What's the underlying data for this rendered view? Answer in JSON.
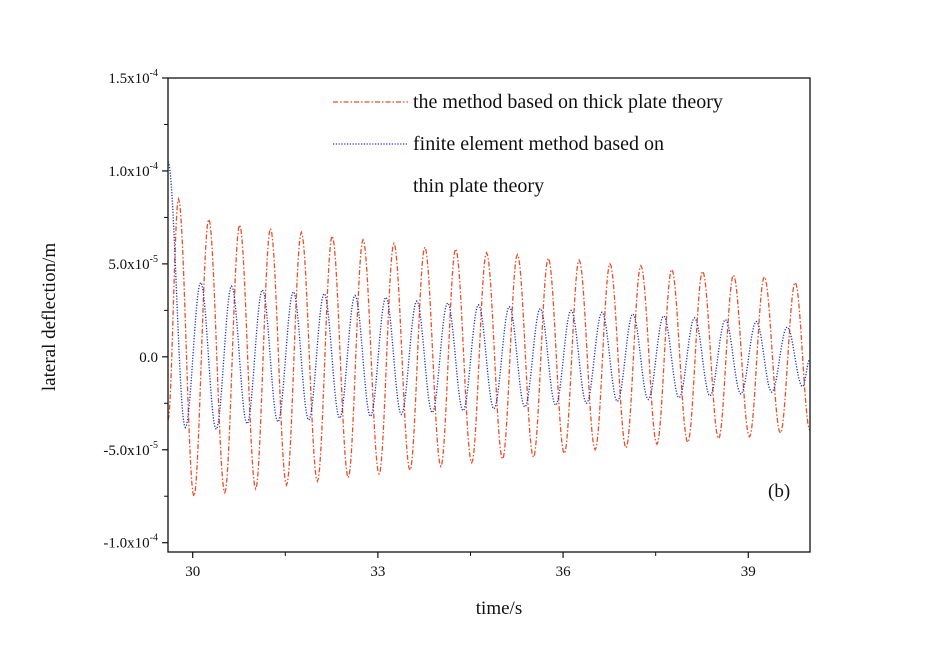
{
  "chart_data": {
    "type": "line",
    "title": "",
    "xlabel": "time/s",
    "ylabel": "lateral deflection/m",
    "xlim": [
      29.6,
      40.0
    ],
    "ylim": [
      -0.000105,
      0.00015
    ],
    "x_ticks": [
      30,
      33,
      36,
      39
    ],
    "x_tick_labels": [
      "30",
      "33",
      "36",
      "39"
    ],
    "y_ticks": [
      -0.0001,
      -5e-05,
      0.0,
      5e-05,
      0.0001,
      0.00015
    ],
    "y_tick_labels": [
      {
        "mantissa": "-1.0x10",
        "exp": "-4"
      },
      {
        "mantissa": "-5.0x10",
        "exp": "-5"
      },
      {
        "mantissa": "0.0",
        "exp": ""
      },
      {
        "mantissa": "5.0x10",
        "exp": "-5"
      },
      {
        "mantissa": "1.0x10",
        "exp": "-4"
      },
      {
        "mantissa": "1.5x10",
        "exp": "-4"
      }
    ],
    "panel_label": "(b)",
    "legend_position": "top-right",
    "grid": false,
    "series": [
      {
        "name": "the method based on thick plate theory",
        "color": "#e8502a",
        "line_style": "dash-dot",
        "start_x": 29.6,
        "end_x": 40.0,
        "period": 0.498,
        "peaks": [
          [
            29.77,
            8.5e-05
          ],
          [
            30.26,
            7.4e-05
          ],
          [
            30.76,
            7.1e-05
          ],
          [
            31.26,
            6.9e-05
          ],
          [
            31.76,
            6.7e-05
          ],
          [
            32.26,
            6.5e-05
          ],
          [
            32.76,
            6.3e-05
          ],
          [
            33.26,
            6.1e-05
          ],
          [
            33.76,
            5.9e-05
          ],
          [
            34.26,
            5.8e-05
          ],
          [
            34.76,
            5.6e-05
          ],
          [
            35.26,
            5.5e-05
          ],
          [
            35.76,
            5.3e-05
          ],
          [
            36.26,
            5.2e-05
          ],
          [
            36.76,
            5e-05
          ],
          [
            37.26,
            4.9e-05
          ],
          [
            37.76,
            4.7e-05
          ],
          [
            38.26,
            4.6e-05
          ],
          [
            38.76,
            4.4e-05
          ],
          [
            39.26,
            4.3e-05
          ],
          [
            39.76,
            4e-05
          ]
        ],
        "troughs": [
          [
            30.02,
            -7.5e-05
          ],
          [
            30.52,
            -7.3e-05
          ],
          [
            31.02,
            -7.1e-05
          ],
          [
            31.52,
            -6.9e-05
          ],
          [
            32.02,
            -6.7e-05
          ],
          [
            32.52,
            -6.5e-05
          ],
          [
            33.02,
            -6.3e-05
          ],
          [
            33.52,
            -6.1e-05
          ],
          [
            34.02,
            -5.9e-05
          ],
          [
            34.52,
            -5.7e-05
          ],
          [
            35.02,
            -5.5e-05
          ],
          [
            35.52,
            -5.4e-05
          ],
          [
            36.02,
            -5.2e-05
          ],
          [
            36.52,
            -5e-05
          ],
          [
            37.02,
            -4.9e-05
          ],
          [
            37.52,
            -4.7e-05
          ],
          [
            38.02,
            -4.6e-05
          ],
          [
            38.52,
            -4.4e-05
          ],
          [
            39.02,
            -4.3e-05
          ],
          [
            39.52,
            -4.1e-05
          ]
        ]
      },
      {
        "name": "finite element method based on thin plate theory",
        "color": "#1a2fc4",
        "line_style": "dotted",
        "start_x": 29.6,
        "end_x": 40.0,
        "start_value": 0.000105,
        "period": 0.5,
        "peaks": [
          [
            30.13,
            4e-05
          ],
          [
            30.63,
            3.8e-05
          ],
          [
            31.13,
            3.6e-05
          ],
          [
            31.63,
            3.5e-05
          ],
          [
            32.13,
            3.4e-05
          ],
          [
            32.63,
            3.3e-05
          ],
          [
            33.13,
            3.2e-05
          ],
          [
            33.63,
            3e-05
          ],
          [
            34.13,
            2.9e-05
          ],
          [
            34.63,
            2.8e-05
          ],
          [
            35.13,
            2.7e-05
          ],
          [
            35.63,
            2.6e-05
          ],
          [
            36.13,
            2.5e-05
          ],
          [
            36.63,
            2.4e-05
          ],
          [
            37.13,
            2.3e-05
          ],
          [
            37.63,
            2.2e-05
          ],
          [
            38.13,
            2.1e-05
          ],
          [
            38.63,
            2e-05
          ],
          [
            39.13,
            1.9e-05
          ],
          [
            39.63,
            1.6e-05
          ]
        ],
        "troughs": [
          [
            29.88,
            -3.8e-05
          ],
          [
            30.38,
            -3.9e-05
          ],
          [
            30.88,
            -3.6e-05
          ],
          [
            31.38,
            -3.5e-05
          ],
          [
            31.88,
            -3.4e-05
          ],
          [
            32.38,
            -3.3e-05
          ],
          [
            32.88,
            -3.2e-05
          ],
          [
            33.38,
            -3.1e-05
          ],
          [
            33.88,
            -3e-05
          ],
          [
            34.38,
            -2.9e-05
          ],
          [
            34.88,
            -2.8e-05
          ],
          [
            35.38,
            -2.7e-05
          ],
          [
            35.88,
            -2.6e-05
          ],
          [
            36.38,
            -2.5e-05
          ],
          [
            36.88,
            -2.4e-05
          ],
          [
            37.38,
            -2.3e-05
          ],
          [
            37.88,
            -2.2e-05
          ],
          [
            38.38,
            -2.1e-05
          ],
          [
            38.88,
            -2e-05
          ],
          [
            39.38,
            -1.9e-05
          ],
          [
            39.88,
            -1.6e-05
          ]
        ]
      }
    ],
    "legend_lines": [
      "the method based on thick plate theory",
      "finite element method based on",
      "thin plate theory"
    ]
  }
}
